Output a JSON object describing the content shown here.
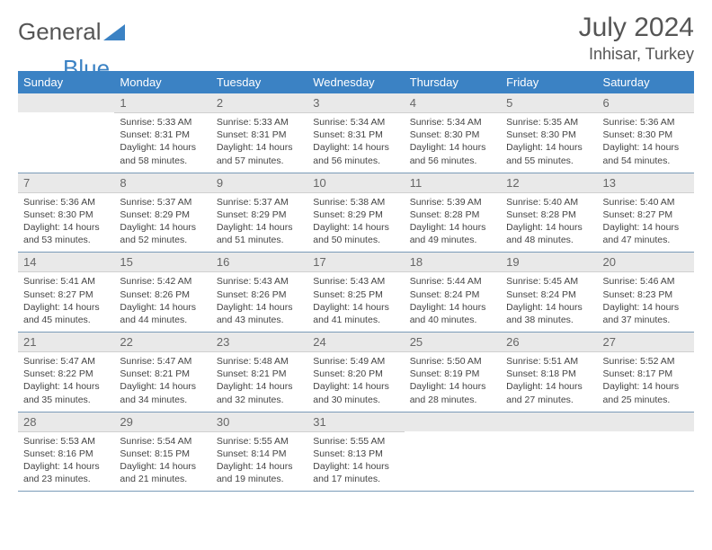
{
  "logo": {
    "text_gray": "General",
    "text_blue": "Blue"
  },
  "title": "July 2024",
  "location": "Inhisar, Turkey",
  "colors": {
    "header_bg": "#3b82c4",
    "header_text": "#ffffff",
    "daynum_bg": "#e9e9e9",
    "text": "#444444",
    "title_text": "#555555",
    "row_border": "#7a9bb8"
  },
  "weekdays": [
    "Sunday",
    "Monday",
    "Tuesday",
    "Wednesday",
    "Thursday",
    "Friday",
    "Saturday"
  ],
  "weeks": [
    [
      {
        "blank": true
      },
      {
        "n": "1",
        "sr": "5:33 AM",
        "ss": "8:31 PM",
        "dl": "14 hours and 58 minutes."
      },
      {
        "n": "2",
        "sr": "5:33 AM",
        "ss": "8:31 PM",
        "dl": "14 hours and 57 minutes."
      },
      {
        "n": "3",
        "sr": "5:34 AM",
        "ss": "8:31 PM",
        "dl": "14 hours and 56 minutes."
      },
      {
        "n": "4",
        "sr": "5:34 AM",
        "ss": "8:30 PM",
        "dl": "14 hours and 56 minutes."
      },
      {
        "n": "5",
        "sr": "5:35 AM",
        "ss": "8:30 PM",
        "dl": "14 hours and 55 minutes."
      },
      {
        "n": "6",
        "sr": "5:36 AM",
        "ss": "8:30 PM",
        "dl": "14 hours and 54 minutes."
      }
    ],
    [
      {
        "n": "7",
        "sr": "5:36 AM",
        "ss": "8:30 PM",
        "dl": "14 hours and 53 minutes."
      },
      {
        "n": "8",
        "sr": "5:37 AM",
        "ss": "8:29 PM",
        "dl": "14 hours and 52 minutes."
      },
      {
        "n": "9",
        "sr": "5:37 AM",
        "ss": "8:29 PM",
        "dl": "14 hours and 51 minutes."
      },
      {
        "n": "10",
        "sr": "5:38 AM",
        "ss": "8:29 PM",
        "dl": "14 hours and 50 minutes."
      },
      {
        "n": "11",
        "sr": "5:39 AM",
        "ss": "8:28 PM",
        "dl": "14 hours and 49 minutes."
      },
      {
        "n": "12",
        "sr": "5:40 AM",
        "ss": "8:28 PM",
        "dl": "14 hours and 48 minutes."
      },
      {
        "n": "13",
        "sr": "5:40 AM",
        "ss": "8:27 PM",
        "dl": "14 hours and 47 minutes."
      }
    ],
    [
      {
        "n": "14",
        "sr": "5:41 AM",
        "ss": "8:27 PM",
        "dl": "14 hours and 45 minutes."
      },
      {
        "n": "15",
        "sr": "5:42 AM",
        "ss": "8:26 PM",
        "dl": "14 hours and 44 minutes."
      },
      {
        "n": "16",
        "sr": "5:43 AM",
        "ss": "8:26 PM",
        "dl": "14 hours and 43 minutes."
      },
      {
        "n": "17",
        "sr": "5:43 AM",
        "ss": "8:25 PM",
        "dl": "14 hours and 41 minutes."
      },
      {
        "n": "18",
        "sr": "5:44 AM",
        "ss": "8:24 PM",
        "dl": "14 hours and 40 minutes."
      },
      {
        "n": "19",
        "sr": "5:45 AM",
        "ss": "8:24 PM",
        "dl": "14 hours and 38 minutes."
      },
      {
        "n": "20",
        "sr": "5:46 AM",
        "ss": "8:23 PM",
        "dl": "14 hours and 37 minutes."
      }
    ],
    [
      {
        "n": "21",
        "sr": "5:47 AM",
        "ss": "8:22 PM",
        "dl": "14 hours and 35 minutes."
      },
      {
        "n": "22",
        "sr": "5:47 AM",
        "ss": "8:21 PM",
        "dl": "14 hours and 34 minutes."
      },
      {
        "n": "23",
        "sr": "5:48 AM",
        "ss": "8:21 PM",
        "dl": "14 hours and 32 minutes."
      },
      {
        "n": "24",
        "sr": "5:49 AM",
        "ss": "8:20 PM",
        "dl": "14 hours and 30 minutes."
      },
      {
        "n": "25",
        "sr": "5:50 AM",
        "ss": "8:19 PM",
        "dl": "14 hours and 28 minutes."
      },
      {
        "n": "26",
        "sr": "5:51 AM",
        "ss": "8:18 PM",
        "dl": "14 hours and 27 minutes."
      },
      {
        "n": "27",
        "sr": "5:52 AM",
        "ss": "8:17 PM",
        "dl": "14 hours and 25 minutes."
      }
    ],
    [
      {
        "n": "28",
        "sr": "5:53 AM",
        "ss": "8:16 PM",
        "dl": "14 hours and 23 minutes."
      },
      {
        "n": "29",
        "sr": "5:54 AM",
        "ss": "8:15 PM",
        "dl": "14 hours and 21 minutes."
      },
      {
        "n": "30",
        "sr": "5:55 AM",
        "ss": "8:14 PM",
        "dl": "14 hours and 19 minutes."
      },
      {
        "n": "31",
        "sr": "5:55 AM",
        "ss": "8:13 PM",
        "dl": "14 hours and 17 minutes."
      },
      {
        "blank": true
      },
      {
        "blank": true
      },
      {
        "blank": true
      }
    ]
  ],
  "labels": {
    "sunrise": "Sunrise:",
    "sunset": "Sunset:",
    "daylight": "Daylight:"
  }
}
